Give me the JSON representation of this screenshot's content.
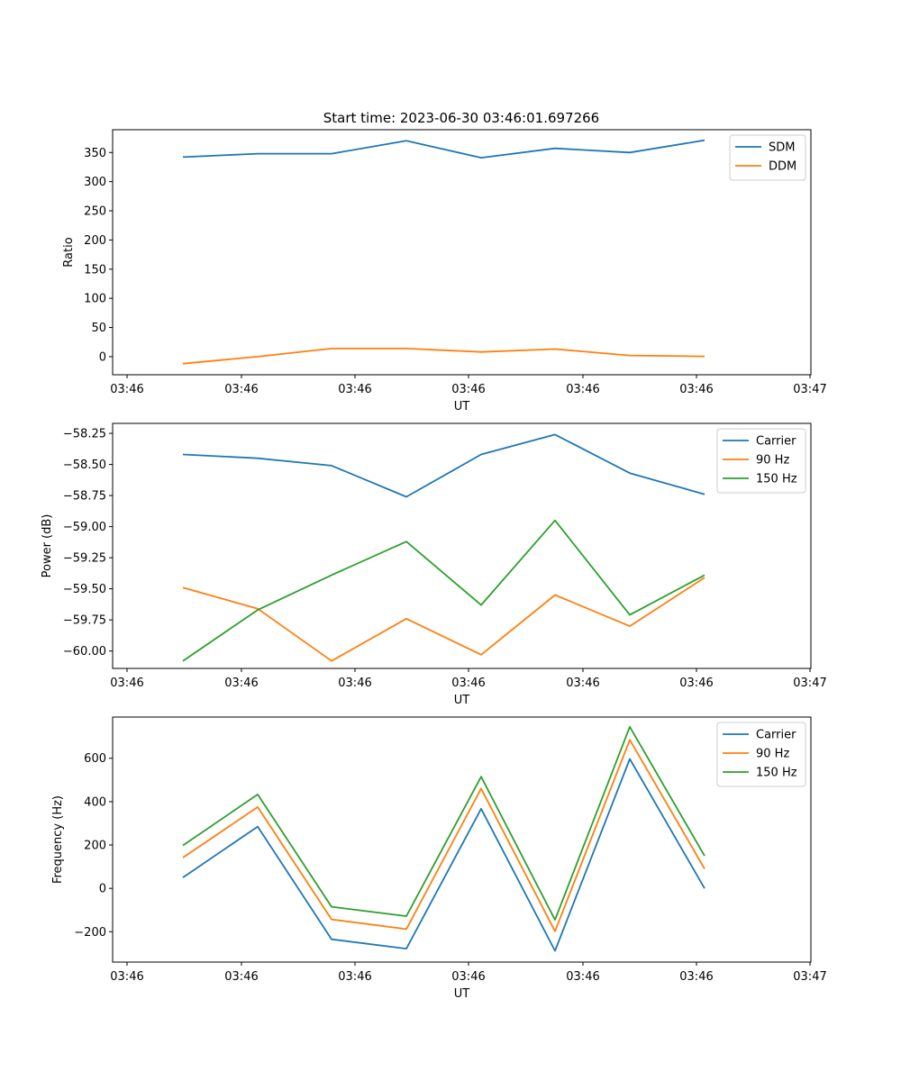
{
  "title": "Start time: 2023-06-30 03:46:01.697266",
  "colors": {
    "blue": "#1f77b4",
    "orange": "#ff7f0e",
    "green": "#2ca02c"
  },
  "chart_data": [
    {
      "type": "line",
      "xlabel": "UT",
      "ylabel": "Ratio",
      "x_tick_labels": [
        "03:46",
        "03:46",
        "03:46",
        "03:46",
        "03:46",
        "03:46",
        "03:47"
      ],
      "y_ticks": [
        0,
        50,
        100,
        150,
        200,
        250,
        300,
        350
      ],
      "ylim": [
        -31,
        389
      ],
      "legend_position": "upper right",
      "grid": false,
      "series": [
        {
          "name": "SDM",
          "color": "#1f77b4",
          "values": [
            342,
            348,
            348,
            370,
            341,
            357,
            350,
            371
          ]
        },
        {
          "name": "DDM",
          "color": "#ff7f0e",
          "values": [
            -12,
            0,
            14,
            14,
            8,
            13,
            2,
            0.5
          ]
        }
      ]
    },
    {
      "type": "line",
      "xlabel": "UT",
      "ylabel": "Power (dB)",
      "x_tick_labels": [
        "03:46",
        "03:46",
        "03:46",
        "03:46",
        "03:46",
        "03:46",
        "03:47"
      ],
      "y_ticks": [
        -60.0,
        -59.75,
        -59.5,
        -59.25,
        -59.0,
        -58.75,
        -58.5,
        -58.25
      ],
      "y_tick_labels": [
        "−60.00",
        "−59.75",
        "−59.50",
        "−59.25",
        "−59.00",
        "−58.75",
        "−58.50",
        "−58.25"
      ],
      "ylim": [
        -60.14,
        -58.17
      ],
      "legend_position": "upper right",
      "grid": false,
      "series": [
        {
          "name": "Carrier",
          "color": "#1f77b4",
          "values": [
            -58.42,
            -58.45,
            -58.51,
            -58.76,
            -58.42,
            -58.26,
            -58.57,
            -58.74
          ]
        },
        {
          "name": "90 Hz",
          "color": "#ff7f0e",
          "values": [
            -59.49,
            -59.66,
            -60.08,
            -59.74,
            -60.03,
            -59.55,
            -59.8,
            -59.41
          ]
        },
        {
          "name": "150 Hz",
          "color": "#2ca02c",
          "values": [
            -60.08,
            -59.67,
            -59.39,
            -59.12,
            -59.63,
            -58.95,
            -59.71,
            -59.39
          ]
        }
      ]
    },
    {
      "type": "line",
      "xlabel": "UT",
      "ylabel": "Frequency (Hz)",
      "x_tick_labels": [
        "03:46",
        "03:46",
        "03:46",
        "03:46",
        "03:46",
        "03:46",
        "03:47"
      ],
      "y_ticks": [
        -200,
        0,
        200,
        400,
        600
      ],
      "y_tick_labels": [
        "−200",
        "0",
        "200",
        "400",
        "600"
      ],
      "ylim": [
        -340,
        790
      ],
      "legend_position": "upper right",
      "grid": false,
      "series": [
        {
          "name": "Carrier",
          "color": "#1f77b4",
          "values": [
            50,
            285,
            -235,
            -278,
            367,
            -288,
            597,
            0
          ]
        },
        {
          "name": "90 Hz",
          "color": "#ff7f0e",
          "values": [
            142,
            375,
            -143,
            -188,
            460,
            -198,
            685,
            90
          ]
        },
        {
          "name": "150 Hz",
          "color": "#2ca02c",
          "values": [
            198,
            433,
            -85,
            -128,
            515,
            -145,
            745,
            150
          ]
        }
      ]
    }
  ]
}
